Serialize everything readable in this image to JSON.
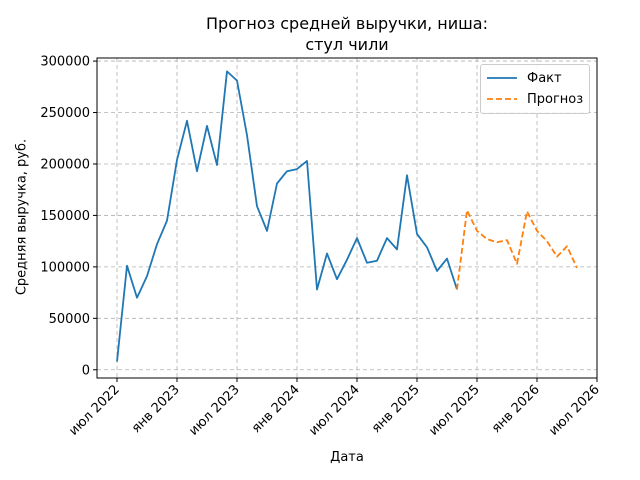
{
  "chart_data": {
    "type": "line",
    "title_lines": [
      "Прогноз средней выручки, ниша:",
      "стул чили"
    ],
    "xlabel": "Дата",
    "ylabel": "Средняя выручка, руб.",
    "x_tick_labels": [
      "июл 2022",
      "янв 2023",
      "июл 2023",
      "янв 2024",
      "июл 2024",
      "янв 2025",
      "июл 2025",
      "янв 2026",
      "июл 2026"
    ],
    "x_tick_dates": [
      "2022-07",
      "2023-01",
      "2023-07",
      "2024-01",
      "2024-07",
      "2025-01",
      "2025-07",
      "2026-01",
      "2026-07"
    ],
    "y_ticks": [
      0,
      50000,
      100000,
      150000,
      200000,
      250000,
      300000
    ],
    "y_tick_labels": [
      "0",
      "50000",
      "100000",
      "150000",
      "200000",
      "250000",
      "300000"
    ],
    "xlim": [
      "2022-05",
      "2026-07"
    ],
    "ylim": [
      -8000,
      303000
    ],
    "grid": true,
    "legend_position": "top-right",
    "series": [
      {
        "name": "Факт",
        "color": "#1f77b4",
        "style": "solid",
        "x": [
          "2022-07",
          "2022-08",
          "2022-09",
          "2022-10",
          "2022-11",
          "2022-12",
          "2023-01",
          "2023-02",
          "2023-03",
          "2023-04",
          "2023-05",
          "2023-06",
          "2023-07",
          "2023-08",
          "2023-09",
          "2023-10",
          "2023-11",
          "2023-12",
          "2024-01",
          "2024-02",
          "2024-03",
          "2024-04",
          "2024-05",
          "2024-06",
          "2024-07",
          "2024-08",
          "2024-09",
          "2024-10",
          "2024-11",
          "2024-12",
          "2025-01",
          "2025-02",
          "2025-03",
          "2025-04",
          "2025-05"
        ],
        "values": [
          8000,
          101000,
          70000,
          91000,
          122000,
          145000,
          204000,
          242000,
          193000,
          237000,
          199000,
          290000,
          281000,
          228000,
          159000,
          135000,
          181000,
          193000,
          195000,
          203000,
          78000,
          113000,
          88000,
          107000,
          128000,
          104000,
          106000,
          128000,
          117000,
          189000,
          132000,
          119000,
          96000,
          108000,
          78000
        ]
      },
      {
        "name": "Прогноз",
        "color": "#ff7f0e",
        "style": "dashed",
        "x": [
          "2025-05",
          "2025-06",
          "2025-07",
          "2025-08",
          "2025-09",
          "2025-10",
          "2025-11",
          "2025-12",
          "2026-01",
          "2026-02",
          "2026-03",
          "2026-04",
          "2026-05"
        ],
        "values": [
          78000,
          155000,
          135000,
          127000,
          124000,
          126000,
          103000,
          154000,
          135000,
          125000,
          110000,
          120000,
          99000
        ]
      }
    ]
  }
}
